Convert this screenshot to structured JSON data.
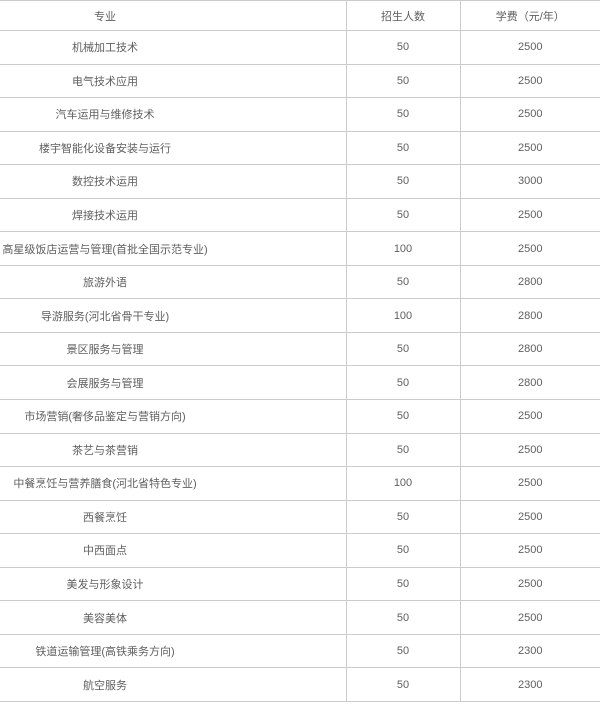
{
  "chart_data": {
    "type": "table",
    "title": "",
    "columns": [
      "专业",
      "招生人数",
      "学费（元/年）"
    ],
    "rows": [
      [
        "机械加工技术",
        "50",
        "2500"
      ],
      [
        "电气技术应用",
        "50",
        "2500"
      ],
      [
        "汽车运用与维修技术",
        "50",
        "2500"
      ],
      [
        "楼宇智能化设备安装与运行",
        "50",
        "2500"
      ],
      [
        "数控技术运用",
        "50",
        "3000"
      ],
      [
        "焊接技术运用",
        "50",
        "2500"
      ],
      [
        "高星级饭店运营与管理(首批全国示范专业)",
        "100",
        "2500"
      ],
      [
        "旅游外语",
        "50",
        "2800"
      ],
      [
        "导游服务(河北省骨干专业)",
        "100",
        "2800"
      ],
      [
        "景区服务与管理",
        "50",
        "2800"
      ],
      [
        "会展服务与管理",
        "50",
        "2800"
      ],
      [
        "市场营销(奢侈品鉴定与营销方向)",
        "50",
        "2500"
      ],
      [
        "茶艺与茶营销",
        "50",
        "2500"
      ],
      [
        "中餐烹饪与营养膳食(河北省特色专业)",
        "100",
        "2500"
      ],
      [
        "西餐烹饪",
        "50",
        "2500"
      ],
      [
        "中西面点",
        "50",
        "2500"
      ],
      [
        "美发与形象设计",
        "50",
        "2500"
      ],
      [
        "美容美体",
        "50",
        "2500"
      ],
      [
        "铁道运输管理(高铁乘务方向)",
        "50",
        "2300"
      ],
      [
        "航空服务",
        "50",
        "2300"
      ]
    ],
    "layout": {
      "grid": "horizontal rules every row; vertical rules only between the three columns",
      "header_position": "top row, same styling as body rows"
    }
  },
  "colors": {
    "background": "#ffffff",
    "text": "#5f5f5f",
    "border": "#cccccc"
  }
}
